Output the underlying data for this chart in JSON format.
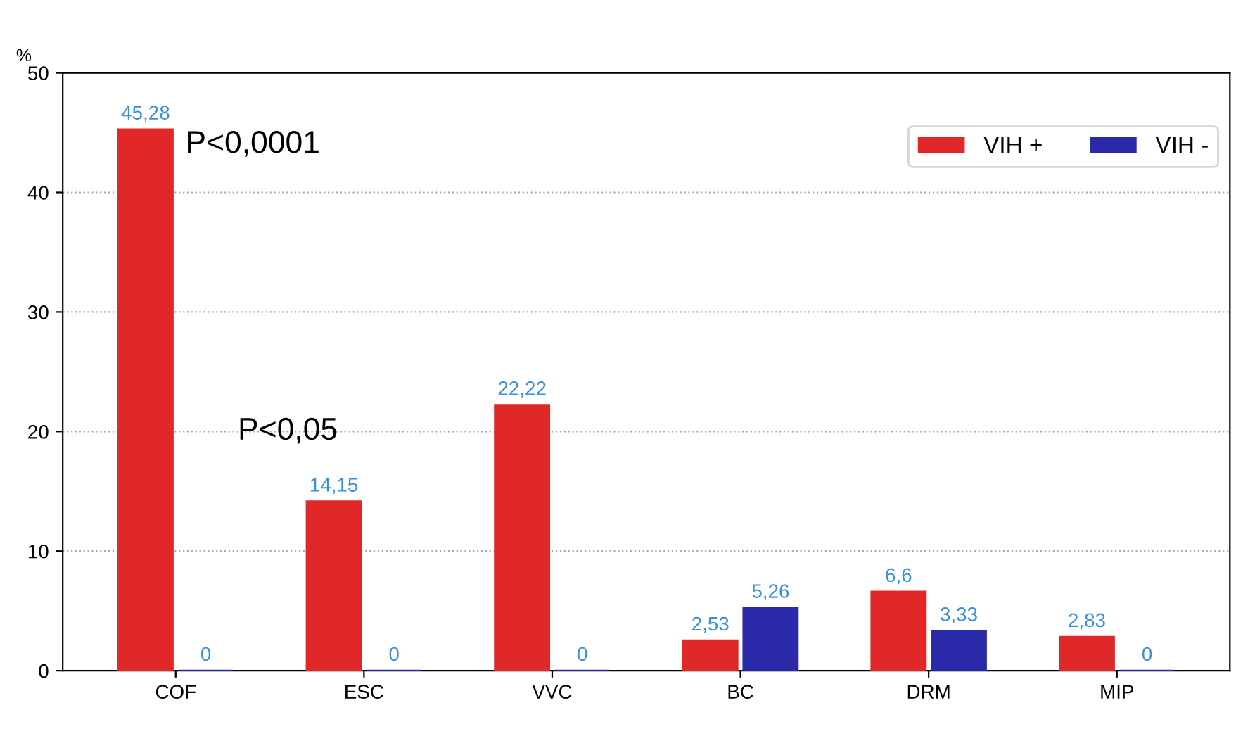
{
  "chart_data": {
    "type": "bar",
    "ylabel": "%",
    "categories": [
      "COF",
      "ESC",
      "VVC",
      "BC",
      "DRM",
      "MIP"
    ],
    "series": [
      {
        "name": "VIH +",
        "color": "#e02828",
        "values": [
          45.28,
          14.15,
          22.22,
          2.53,
          6.6,
          2.83
        ],
        "value_labels": [
          "45,28",
          "14,15",
          "22,22",
          "2,53",
          "6,6",
          "2,83"
        ]
      },
      {
        "name": "VIH -",
        "color": "#2a2aa8",
        "values": [
          0,
          0,
          0,
          5.26,
          3.33,
          0
        ],
        "value_labels": [
          "0",
          "0",
          "0",
          "5,26",
          "3,33",
          "0"
        ]
      }
    ],
    "annotations": [
      "P<0,0001",
      "P<0,05"
    ],
    "ylim": [
      0,
      50
    ],
    "yticks": [
      0,
      10,
      20,
      30,
      40,
      50
    ],
    "grid": "y",
    "legend": "top right"
  }
}
